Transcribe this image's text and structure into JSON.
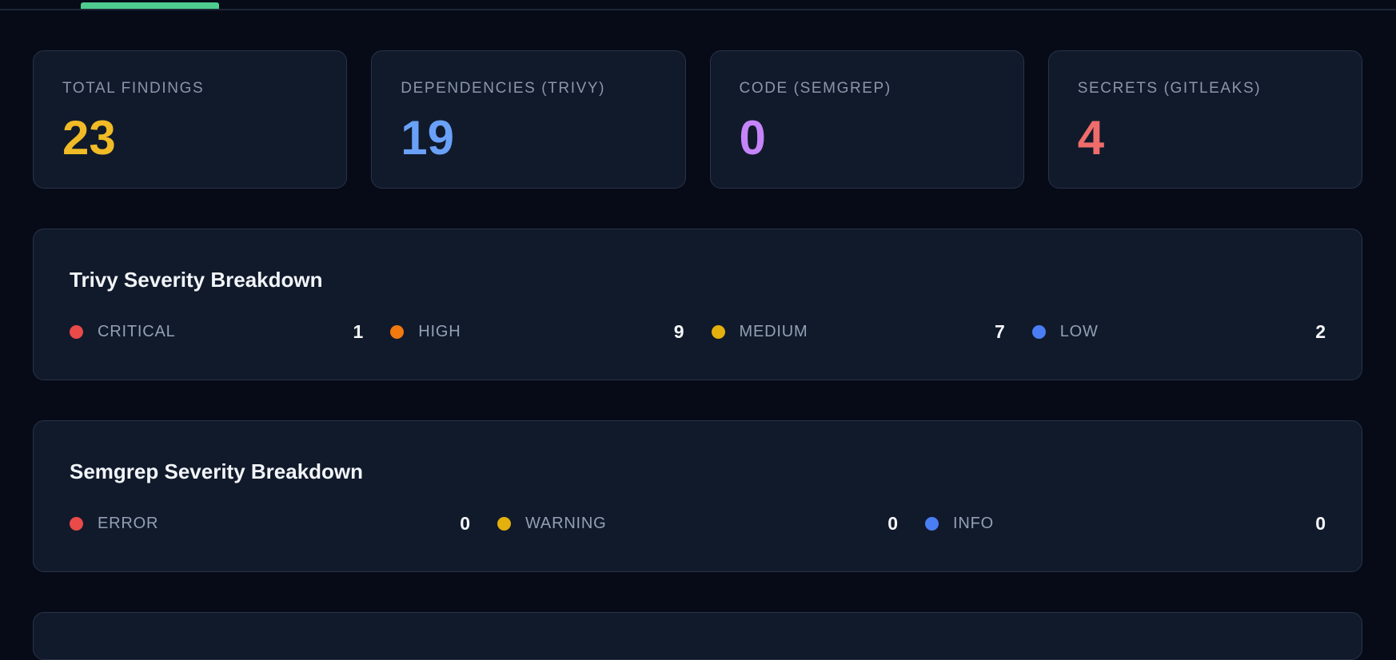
{
  "tabs": {
    "active_indicator_color": "#4ecb8e"
  },
  "summary_cards": [
    {
      "label": "TOTAL FINDINGS",
      "value": "23",
      "value_color": "#f0bb26"
    },
    {
      "label": "DEPENDENCIES (TRIVY)",
      "value": "19",
      "value_color": "#6aa1f8"
    },
    {
      "label": "CODE (SEMGREP)",
      "value": "0",
      "value_color": "#c584f8"
    },
    {
      "label": "SECRETS (GITLEAKS)",
      "value": "4",
      "value_color": "#ee6d6b"
    }
  ],
  "trivy_breakdown": {
    "title": "Trivy Severity Breakdown",
    "items": [
      {
        "label": "CRITICAL",
        "value": "1",
        "dot_color": "#ea4a48"
      },
      {
        "label": "HIGH",
        "value": "9",
        "dot_color": "#f1790f"
      },
      {
        "label": "MEDIUM",
        "value": "7",
        "dot_color": "#e4b00d"
      },
      {
        "label": "LOW",
        "value": "2",
        "dot_color": "#4b7ef5"
      }
    ]
  },
  "semgrep_breakdown": {
    "title": "Semgrep Severity Breakdown",
    "items": [
      {
        "label": "ERROR",
        "value": "0",
        "dot_color": "#ea4a48"
      },
      {
        "label": "WARNING",
        "value": "0",
        "dot_color": "#e4b00d"
      },
      {
        "label": "INFO",
        "value": "0",
        "dot_color": "#4b7ef5"
      }
    ]
  },
  "theme": {
    "page_bg": "#060b17",
    "card_bg": "#111a2b",
    "card_border": "#2a3348",
    "divider": "#1d2636",
    "muted_label": "#8b96ab",
    "heading": "#f2f5f9"
  }
}
